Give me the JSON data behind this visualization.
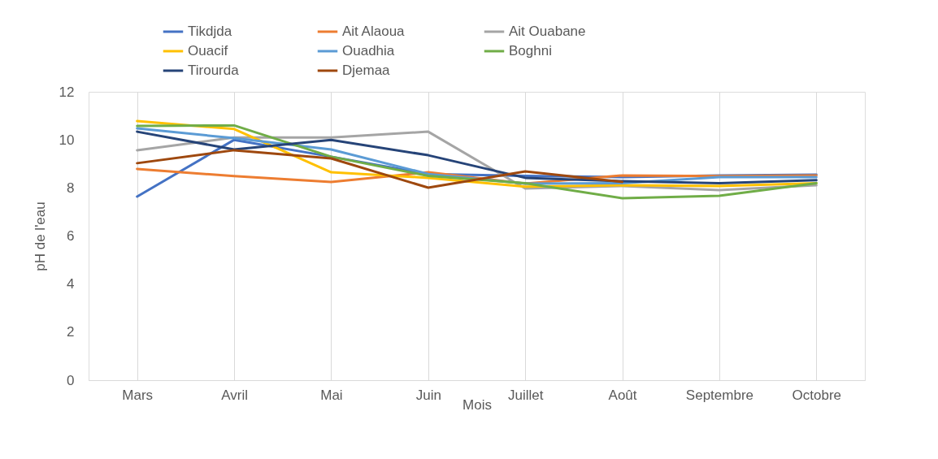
{
  "chart_data": {
    "type": "line",
    "xlabel": "Mois",
    "ylabel": "pH de  l'eau",
    "categories": [
      "Mars",
      "Avril",
      "Mai",
      "Juin",
      "Juillet",
      "Août",
      "Septembre",
      "Octobre"
    ],
    "ylim": [
      0,
      12
    ],
    "yticks": [
      0,
      2,
      4,
      6,
      8,
      10,
      12
    ],
    "grid": "x",
    "legend": "top",
    "marker": "none",
    "line_style": "solid",
    "series": [
      {
        "name": "Tikdjda",
        "color": "#4472c4",
        "values": [
          7.64,
          10.0,
          9.3,
          8.58,
          8.5,
          8.45,
          8.52,
          8.55
        ]
      },
      {
        "name": "Ait Alaoua",
        "color": "#ed7d31",
        "values": [
          8.79,
          8.49,
          8.25,
          8.65,
          8.18,
          8.52,
          8.49,
          8.52
        ]
      },
      {
        "name": "Ait Ouabane",
        "color": "#a5a5a5",
        "values": [
          9.57,
          10.1,
          10.1,
          10.34,
          7.98,
          8.08,
          7.91,
          8.11
        ]
      },
      {
        "name": "Ouacif",
        "color": "#ffc000",
        "values": [
          10.78,
          10.45,
          8.65,
          8.42,
          8.05,
          8.11,
          8.08,
          8.2
        ]
      },
      {
        "name": "Ouadhia",
        "color": "#5b9bd5",
        "values": [
          10.48,
          10.07,
          9.6,
          8.58,
          8.18,
          8.2,
          8.45,
          8.45
        ]
      },
      {
        "name": "Boghni",
        "color": "#70ad47",
        "values": [
          10.58,
          10.6,
          9.3,
          8.5,
          8.2,
          7.57,
          7.67,
          8.2
        ]
      },
      {
        "name": "Tirourda",
        "color": "#264478",
        "values": [
          10.34,
          9.6,
          10.0,
          9.36,
          8.42,
          8.28,
          8.2,
          8.32
        ]
      },
      {
        "name": "Djemaa",
        "color": "#9e480e",
        "values": [
          9.03,
          9.57,
          9.23,
          8.01,
          8.69,
          8.25,
          null,
          null
        ]
      }
    ]
  }
}
